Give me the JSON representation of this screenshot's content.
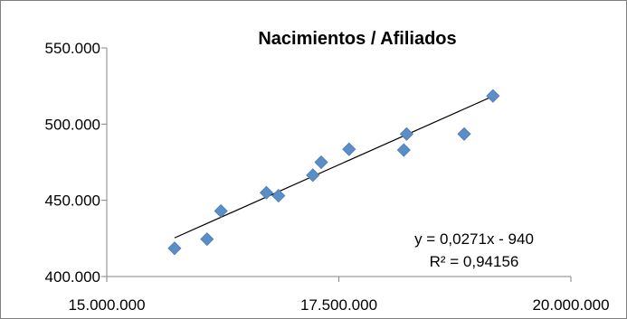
{
  "chart_data": {
    "type": "scatter",
    "title": "Nacimientos / Afiliados",
    "xlabel": "",
    "ylabel": "",
    "xlim": [
      15000000,
      20000000
    ],
    "ylim": [
      400000,
      550000
    ],
    "x_ticks": [
      {
        "value": 15000000,
        "label": "15.000.000"
      },
      {
        "value": 17500000,
        "label": "17.500.000"
      },
      {
        "value": 20000000,
        "label": "20.000.000"
      }
    ],
    "y_ticks": [
      {
        "value": 400000,
        "label": "400.000"
      },
      {
        "value": 450000,
        "label": "450.000"
      },
      {
        "value": 500000,
        "label": "500.000"
      },
      {
        "value": 550000,
        "label": "550.000"
      }
    ],
    "grid": false,
    "marker_color": "#5b8ec7",
    "series": [
      {
        "points": [
          {
            "x": 15730000,
            "y": 418500
          },
          {
            "x": 16080000,
            "y": 424500
          },
          {
            "x": 16230000,
            "y": 443000
          },
          {
            "x": 16720000,
            "y": 455000
          },
          {
            "x": 16850000,
            "y": 453000
          },
          {
            "x": 17220000,
            "y": 466500
          },
          {
            "x": 17310000,
            "y": 475000
          },
          {
            "x": 17610000,
            "y": 483500
          },
          {
            "x": 18200000,
            "y": 483000
          },
          {
            "x": 18230000,
            "y": 493500
          },
          {
            "x": 18850000,
            "y": 493500
          },
          {
            "x": 19160000,
            "y": 518500
          }
        ]
      }
    ],
    "trendline": {
      "type": "linear",
      "equation": "y = 0,0271x - 940",
      "r_squared_label": "R² = 0,94156",
      "slope": 0.0271,
      "intercept": -940,
      "x_range": [
        15730000,
        19160000
      ],
      "color": "#000000"
    }
  }
}
